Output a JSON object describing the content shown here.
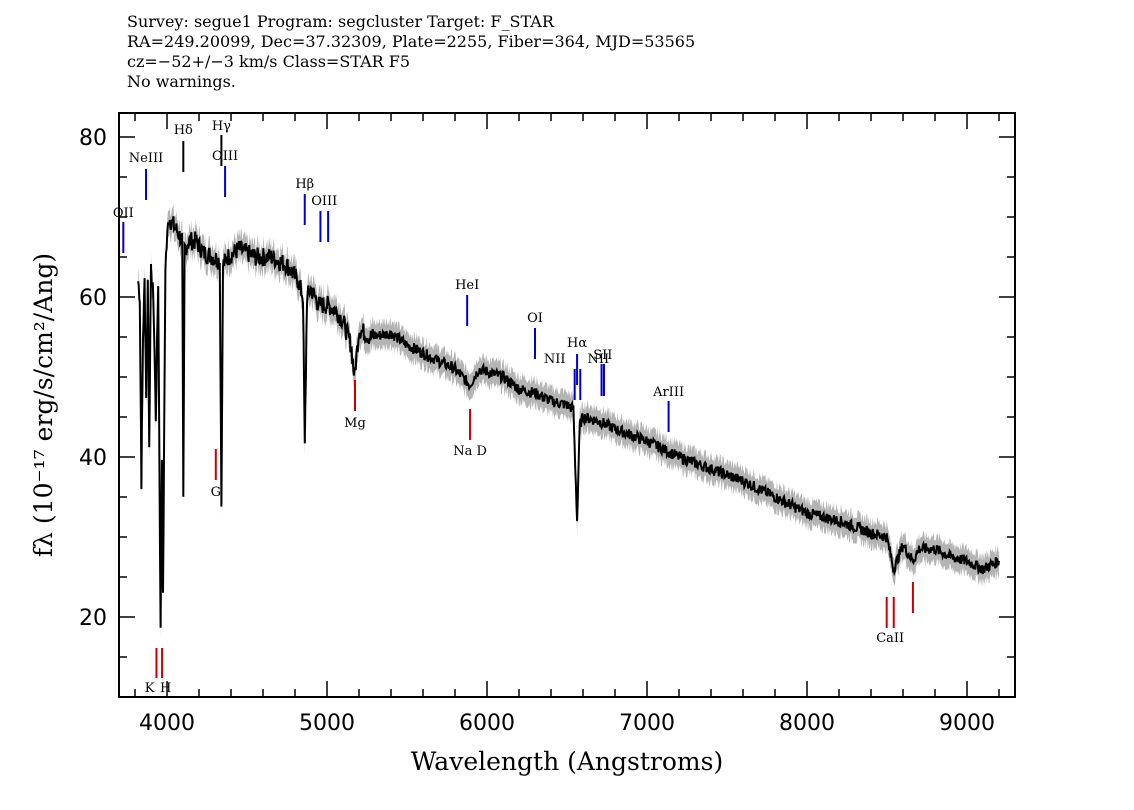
{
  "header": {
    "line1": "Survey: segue1 Program: segcluster Target: F_STAR",
    "line2": "RA=249.20099, Dec=37.32309, Plate=2255, Fiber=364, MJD=53565",
    "line3": "cz=−52+/−3 km/s Class=STAR F5",
    "line4": "No warnings."
  },
  "chart_data": {
    "type": "line",
    "xlabel": "Wavelength (Angstroms)",
    "ylabel": "fλ (10⁻¹⁷ erg/s/cm²/Ang)",
    "xlim": [
      3700,
      9300
    ],
    "ylim": [
      10,
      83
    ],
    "x_ticks": [
      4000,
      5000,
      6000,
      7000,
      8000,
      9000
    ],
    "y_ticks": [
      20,
      40,
      60,
      80
    ],
    "grid": false,
    "series": [
      {
        "color": "#000000",
        "error_band_color": "#b4b4b4",
        "x": [
          3820,
          3830,
          3840,
          3850,
          3860,
          3870,
          3880,
          3889,
          3900,
          3915,
          3930,
          3945,
          3960,
          3968,
          3975,
          3990,
          4010,
          4040,
          4070,
          4095,
          4102,
          4110,
          4140,
          4180,
          4230,
          4290,
          4330,
          4340,
          4350,
          4380,
          4450,
          4550,
          4650,
          4750,
          4820,
          4850,
          4861,
          4875,
          4900,
          4950,
          5000,
          5050,
          5100,
          5150,
          5172,
          5200,
          5270,
          5400,
          5500,
          5600,
          5700,
          5800,
          5893,
          5950,
          6100,
          6200,
          6300,
          6400,
          6500,
          6540,
          6563,
          6580,
          6600,
          6700,
          6800,
          7000,
          7200,
          7400,
          7600,
          7800,
          8000,
          8200,
          8400,
          8498,
          8542,
          8600,
          8662,
          8700,
          8800,
          8900,
          9000,
          9100,
          9200
        ],
        "y": [
          62,
          60,
          37,
          55,
          62,
          48,
          62,
          42,
          63,
          60,
          45,
          62,
          18,
          40,
          22,
          64,
          70,
          69,
          68,
          67,
          34,
          66,
          67,
          67,
          65.5,
          65,
          64.5,
          34,
          64,
          65,
          66,
          65,
          65,
          64,
          62,
          60,
          41,
          60,
          61,
          59,
          59,
          58.5,
          57,
          54,
          50,
          56,
          55,
          55.5,
          54,
          53,
          52,
          51,
          49,
          51,
          50,
          48.5,
          48,
          47,
          46.5,
          46,
          32,
          44,
          45,
          44.5,
          43.5,
          42,
          40,
          38.5,
          37,
          35,
          33,
          32,
          30.5,
          30,
          26,
          29,
          27,
          28.5,
          28.5,
          27.5,
          27,
          26,
          27
        ]
      }
    ],
    "emission_lines": [
      {
        "label": "OII",
        "wavelength": 3727
      },
      {
        "label": "NeIII",
        "wavelength": 3869
      },
      {
        "label": "Hδ",
        "wavelength": 4102
      },
      {
        "label": "Hγ",
        "wavelength": 4340
      },
      {
        "label": "OIII",
        "wavelength": 4363
      },
      {
        "label": "Hβ",
        "wavelength": 4861
      },
      {
        "label": "OIII",
        "wavelength": 4959
      },
      {
        "label": "OIII",
        "wavelength": 5007
      },
      {
        "label": "HeI",
        "wavelength": 5876
      },
      {
        "label": "OI",
        "wavelength": 6300
      },
      {
        "label": "NII",
        "wavelength": 6548
      },
      {
        "label": "Hα",
        "wavelength": 6563
      },
      {
        "label": "NII",
        "wavelength": 6583
      },
      {
        "label": "SII",
        "wavelength": 6716
      },
      {
        "label": "SII",
        "wavelength": 6731
      },
      {
        "label": "ArIII",
        "wavelength": 7135
      }
    ],
    "absorption_lines": [
      {
        "label": "K",
        "wavelength": 3934
      },
      {
        "label": "H",
        "wavelength": 3969
      },
      {
        "label": "G",
        "wavelength": 4305
      },
      {
        "label": "Mg",
        "wavelength": 5175
      },
      {
        "label": "Na D",
        "wavelength": 5894
      },
      {
        "label": "CaII",
        "wavelength": 8498
      },
      {
        "label": "CaII",
        "wavelength": 8542
      },
      {
        "label": "CaII",
        "wavelength": 8662
      }
    ],
    "emission_color": "#0000cc",
    "absorption_color": "#cc0000"
  }
}
